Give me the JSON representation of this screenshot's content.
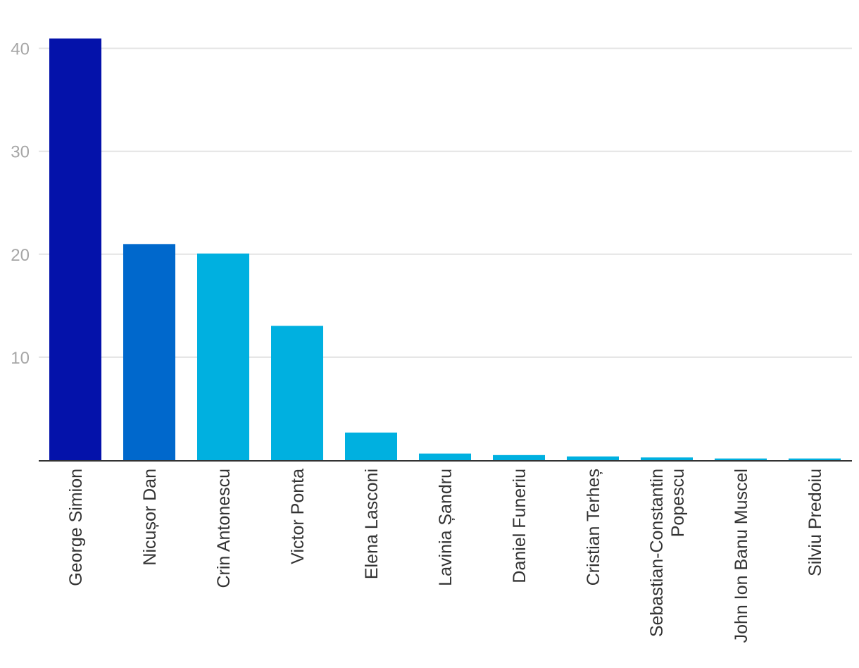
{
  "chart_data": {
    "type": "bar",
    "categories": [
      "George Simion",
      "Nicușor Dan",
      "Crin Antonescu",
      "Victor Ponta",
      "Elena Lasconi",
      "Lavinia Șandru",
      "Daniel Funeriu",
      "Cristian Terheș",
      "Sebastian-Constantin Popescu",
      "John Ion Banu Muscel",
      "Silviu Predoiu"
    ],
    "category_label_lines": [
      [
        "George Simion"
      ],
      [
        "Nicușor Dan"
      ],
      [
        "Crin Antonescu"
      ],
      [
        "Victor Ponta"
      ],
      [
        "Elena Lasconi"
      ],
      [
        "Lavinia Șandru"
      ],
      [
        "Daniel Funeriu"
      ],
      [
        "Cristian Terheș"
      ],
      [
        "Sebastian-Constantin",
        "Popescu"
      ],
      [
        "John Ion Banu Muscel"
      ],
      [
        "Silviu Predoiu"
      ]
    ],
    "values": [
      40.96,
      20.99,
      20.07,
      13.04,
      2.68,
      0.64,
      0.49,
      0.36,
      0.26,
      0.16,
      0.16
    ],
    "bar_colors": [
      "#0412aa",
      "#0068cc",
      "#00b0e0",
      "#00b0e0",
      "#00b0e0",
      "#00b0e0",
      "#00b0e0",
      "#00b0e0",
      "#00b0e0",
      "#00b0e0",
      "#00b0e0"
    ],
    "yticks": [
      10,
      20,
      30,
      40
    ],
    "ylim": [
      0,
      41
    ],
    "title": "",
    "xlabel": "",
    "ylabel": "",
    "grid": true,
    "colors": {
      "grid": "#e3e3e3",
      "axis": "#333333",
      "ytick_text": "#a6a6a6",
      "xtick_text": "#333333"
    }
  }
}
